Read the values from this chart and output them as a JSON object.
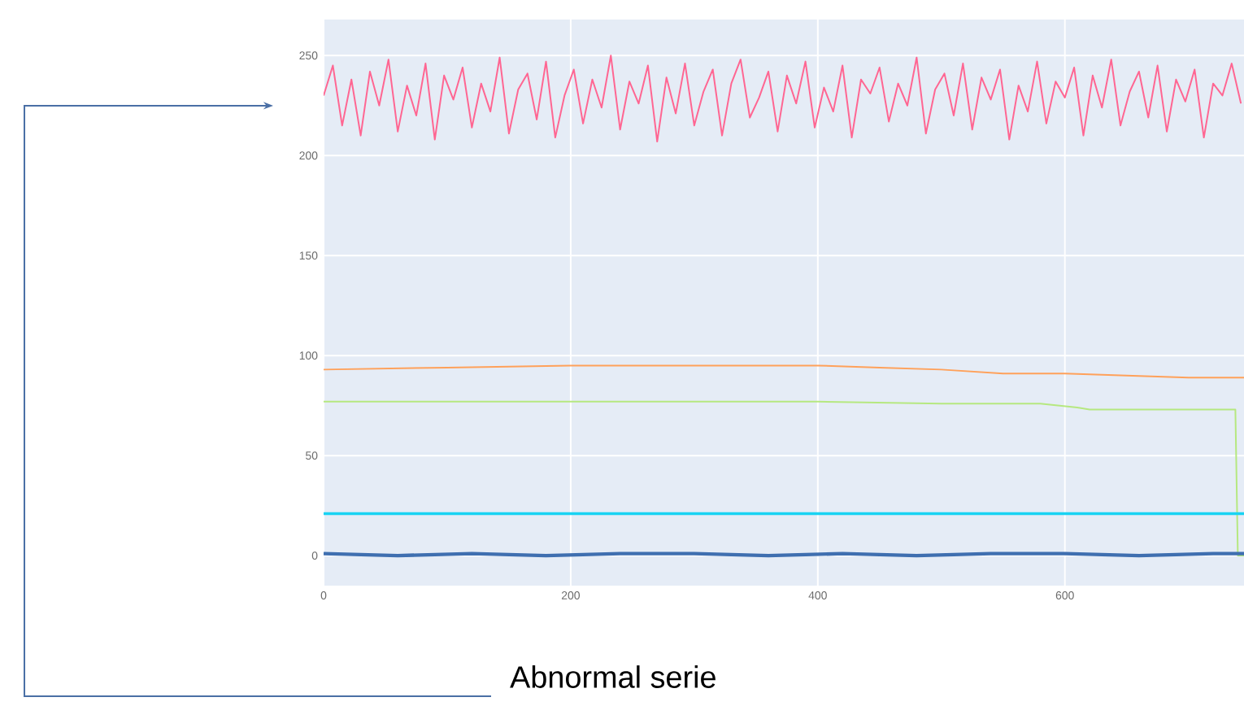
{
  "chart_data": {
    "type": "line",
    "xlim": [
      0,
      745
    ],
    "ylim": [
      -15,
      268
    ],
    "xticks": [
      0,
      200,
      400,
      600
    ],
    "yticks": [
      0,
      50,
      100,
      150,
      200,
      250
    ],
    "grid": true,
    "line_style": "solid",
    "annotations": [
      "Abnormal serie"
    ],
    "series": [
      {
        "color": "#ff6692",
        "x": [
          0,
          7.5,
          15,
          22.5,
          30,
          37.5,
          45,
          52.5,
          60,
          67.5,
          75,
          82.5,
          90,
          97.5,
          105,
          112.5,
          120,
          127.5,
          135,
          142.5,
          150,
          157.5,
          165,
          172.5,
          180,
          187.5,
          195,
          202.5,
          210,
          217.5,
          225,
          232.5,
          240,
          247.5,
          255,
          262.5,
          270,
          277.5,
          285,
          292.5,
          300,
          307.5,
          315,
          322.5,
          330,
          337.5,
          345,
          352.5,
          360,
          367.5,
          375,
          382.5,
          390,
          397.5,
          405,
          412.5,
          420,
          427.5,
          435,
          442.5,
          450,
          457.5,
          465,
          472.5,
          480,
          487.5,
          495,
          502.5,
          510,
          517.5,
          525,
          532.5,
          540,
          547.5,
          555,
          562.5,
          570,
          577.5,
          585,
          592.5,
          600,
          607.5,
          615,
          622.5,
          630,
          637.5,
          645,
          652.5,
          660,
          667.5,
          675,
          682.5,
          690,
          697.5,
          705,
          712.5,
          720,
          727.5,
          735,
          742.5
        ],
        "values": [
          230,
          245,
          215,
          238,
          210,
          242,
          225,
          248,
          212,
          235,
          220,
          246,
          208,
          240,
          228,
          244,
          214,
          236,
          222,
          249,
          211,
          233,
          241,
          218,
          247,
          209,
          230,
          243,
          216,
          238,
          224,
          250,
          213,
          237,
          226,
          245,
          207,
          239,
          221,
          246,
          215,
          232,
          243,
          210,
          236,
          248,
          219,
          229,
          242,
          212,
          240,
          226,
          247,
          214,
          234,
          222,
          245,
          209,
          238,
          231,
          244,
          217,
          236,
          225,
          249,
          211,
          233,
          241,
          220,
          246,
          213,
          239,
          228,
          243,
          208,
          235,
          222,
          247,
          216,
          237,
          229,
          244,
          210,
          240,
          224,
          248,
          215,
          232,
          242,
          219,
          245,
          212,
          238,
          227,
          243,
          209,
          236,
          230,
          246,
          226
        ]
      },
      {
        "color": "#ffa15a",
        "x": [
          0,
          100,
          200,
          300,
          400,
          450,
          500,
          550,
          600,
          650,
          700,
          745
        ],
        "values": [
          93,
          94,
          95,
          95,
          95,
          94,
          93,
          91,
          91,
          90,
          89,
          89
        ]
      },
      {
        "color": "#b6e880",
        "x": [
          0,
          100,
          200,
          300,
          400,
          500,
          580,
          610,
          620,
          700,
          738,
          740,
          745
        ],
        "values": [
          77,
          77,
          77,
          77,
          77,
          76,
          76,
          74,
          73,
          73,
          73,
          0,
          0
        ]
      },
      {
        "color": "#19d3f3",
        "x": [
          0,
          745
        ],
        "values": [
          21,
          21
        ]
      },
      {
        "color": "#3f6fb0",
        "x": [
          0,
          60,
          120,
          180,
          240,
          300,
          360,
          420,
          480,
          540,
          600,
          660,
          720,
          745
        ],
        "values": [
          1,
          0,
          1,
          0,
          1,
          1,
          0,
          1,
          0,
          1,
          1,
          0,
          1,
          1
        ]
      }
    ]
  }
}
